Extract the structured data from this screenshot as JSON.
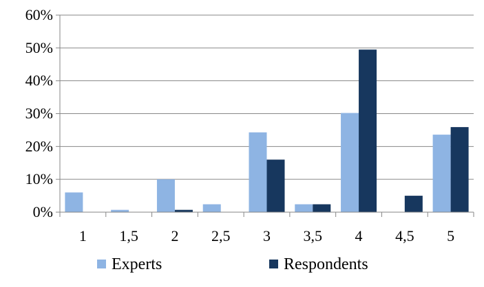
{
  "chart_data": {
    "type": "bar",
    "categories": [
      "1",
      "1,5",
      "2",
      "2,5",
      "3",
      "3,5",
      "4",
      "4,5",
      "5"
    ],
    "series": [
      {
        "name": "Experts",
        "color": "#8EB4E3",
        "values": [
          6,
          0.7,
          10,
          2.4,
          24.3,
          2.4,
          30.2,
          0,
          23.6
        ]
      },
      {
        "name": "Respondents",
        "color": "#17375E",
        "values": [
          0,
          0,
          0.7,
          0,
          16,
          2.4,
          49.5,
          5,
          25.9
        ]
      }
    ],
    "ylim": [
      0,
      60
    ],
    "yticks": [
      0,
      10,
      20,
      30,
      40,
      50,
      60
    ],
    "ytick_labels": [
      "0%",
      "10%",
      "20%",
      "30%",
      "40%",
      "50%",
      "60%"
    ],
    "grid": true,
    "legend_position": "bottom",
    "title": "",
    "xlabel": "",
    "ylabel": ""
  }
}
